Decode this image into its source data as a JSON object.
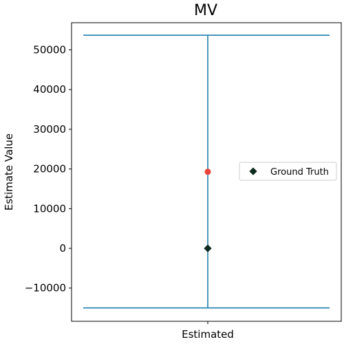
{
  "chart_data": {
    "type": "scatter",
    "title": "MV",
    "xlabel": "",
    "ylabel": "Estimate Value",
    "categories": [
      "Estimated"
    ],
    "ylim": [
      -16000,
      56000
    ],
    "yticks": [
      -10000,
      0,
      10000,
      20000,
      30000,
      40000,
      50000
    ],
    "ytick_labels": [
      "−10000",
      "0",
      "10000",
      "20000",
      "30000",
      "40000",
      "50000"
    ],
    "interval": {
      "lower": -15000,
      "upper": 53700,
      "color": "#1f7fb0"
    },
    "estimate": {
      "value": 19300,
      "color": "#e8443a"
    },
    "ground_truth": {
      "name": "Ground Truth",
      "value": 0,
      "color": "#0d2a1f"
    },
    "grid": false,
    "legend": {
      "placement": "center-right",
      "entries": [
        "Ground Truth"
      ]
    }
  }
}
